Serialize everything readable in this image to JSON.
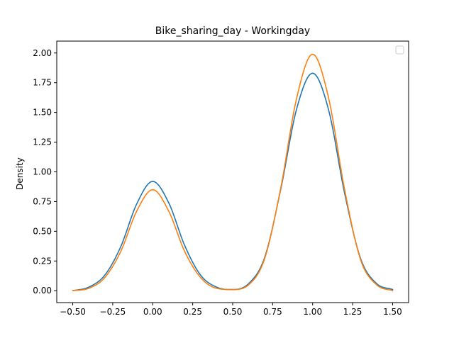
{
  "chart_data": {
    "type": "line",
    "title": "Bike_sharing_day - Workingday",
    "xlabel": "",
    "ylabel": "Density",
    "xlim": [
      -0.6,
      1.6
    ],
    "ylim": [
      -0.1,
      2.1
    ],
    "x_ticks": [
      -0.5,
      -0.25,
      0.0,
      0.25,
      0.5,
      0.75,
      1.0,
      1.25,
      1.5
    ],
    "x_tick_labels": [
      "−0.50",
      "−0.25",
      "0.00",
      "0.25",
      "0.50",
      "0.75",
      "1.00",
      "1.25",
      "1.50"
    ],
    "y_ticks": [
      0.0,
      0.25,
      0.5,
      0.75,
      1.0,
      1.25,
      1.5,
      1.75,
      2.0
    ],
    "y_tick_labels": [
      "0.00",
      "0.25",
      "0.50",
      "0.75",
      "1.00",
      "1.25",
      "1.50",
      "1.75",
      "2.00"
    ],
    "grid": false,
    "legend": "top-right",
    "x": [
      -0.5,
      -0.4,
      -0.3,
      -0.2,
      -0.1,
      0.0,
      0.1,
      0.2,
      0.3,
      0.4,
      0.5,
      0.6,
      0.7,
      0.8,
      0.9,
      1.0,
      1.1,
      1.2,
      1.3,
      1.4,
      1.5
    ],
    "series": [
      {
        "color": "#1f77b4",
        "values": [
          0.0,
          0.03,
          0.13,
          0.37,
          0.73,
          0.92,
          0.74,
          0.38,
          0.13,
          0.03,
          0.01,
          0.06,
          0.28,
          0.85,
          1.53,
          1.83,
          1.52,
          0.82,
          0.27,
          0.06,
          0.01
        ]
      },
      {
        "color": "#ff7f0e",
        "values": [
          0.0,
          0.02,
          0.11,
          0.33,
          0.67,
          0.85,
          0.67,
          0.33,
          0.11,
          0.02,
          0.01,
          0.05,
          0.27,
          0.86,
          1.62,
          1.99,
          1.62,
          0.85,
          0.26,
          0.05,
          0.0
        ]
      }
    ]
  }
}
